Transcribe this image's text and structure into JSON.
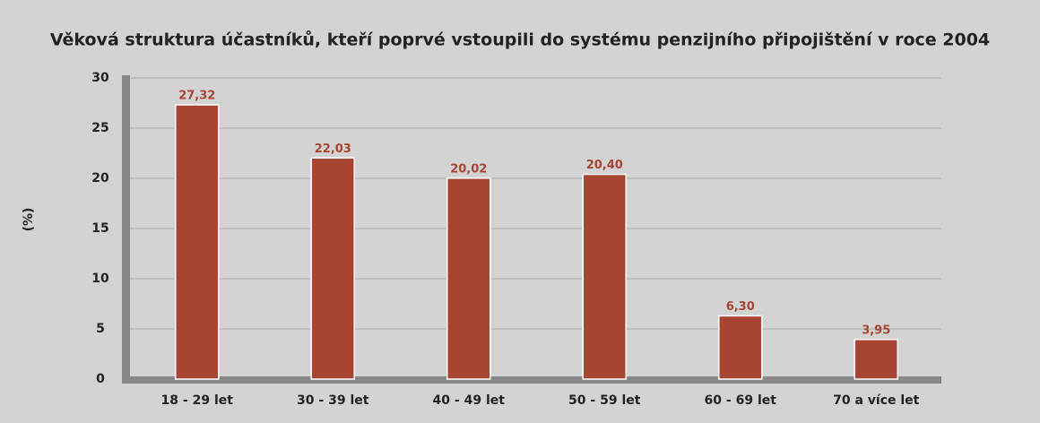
{
  "chart_data": {
    "type": "bar",
    "title": "Věková struktura účastníků, kteří poprvé vstoupili do systému penzijního připojištění v roce 2004",
    "ylabel": "(%)",
    "categories": [
      "18 - 29 let",
      "30 - 39 let",
      "40 - 49 let",
      "50 - 59 let",
      "60 - 69 let",
      "70 a více let"
    ],
    "values": [
      27.32,
      22.03,
      20.02,
      20.4,
      6.3,
      3.95
    ],
    "value_labels": [
      "27,32",
      "22,03",
      "20,02",
      "20,40",
      "6,30",
      "3,95"
    ],
    "color": "#a84432",
    "ylim": [
      0,
      30
    ],
    "yticks": [
      0,
      5,
      10,
      15,
      20,
      25,
      30
    ],
    "grid": true
  }
}
